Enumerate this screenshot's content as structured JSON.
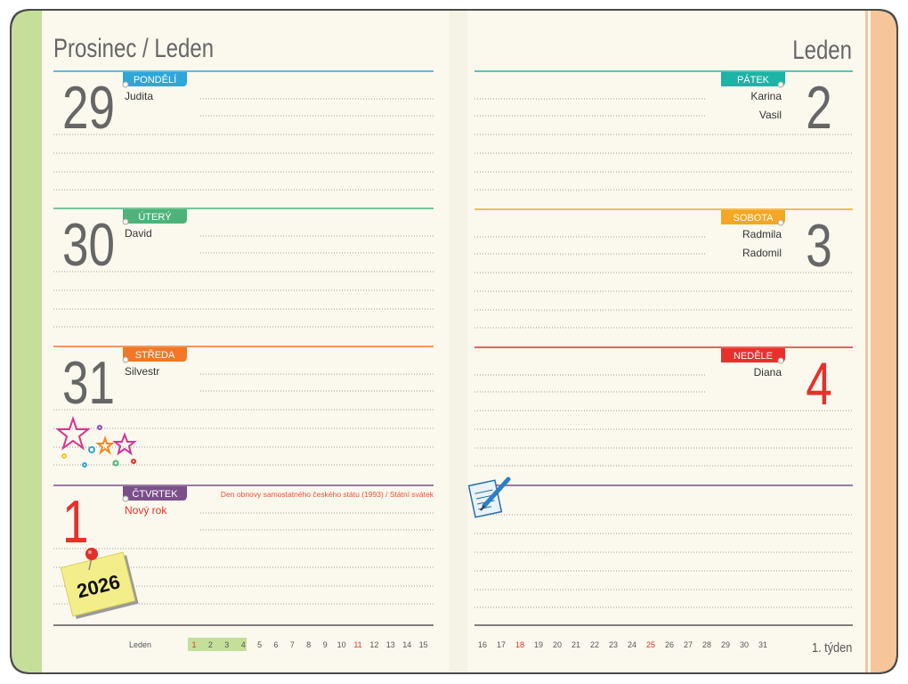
{
  "left": {
    "title": "Prosinec / Leden",
    "days": [
      {
        "number": "29",
        "weekday": "PONDĚLÍ",
        "names": [
          "Judita"
        ]
      },
      {
        "number": "30",
        "weekday": "ÚTERÝ",
        "names": [
          "David"
        ]
      },
      {
        "number": "31",
        "weekday": "STŘEDA",
        "names": [
          "Silvestr"
        ]
      },
      {
        "number": "1",
        "weekday": "ČTVRTEK",
        "names": [
          "Nový rok"
        ],
        "note": "Den obnovy samostatného českého státu (1993) / Státní svátek"
      }
    ],
    "sticker": "2026",
    "footer": {
      "month": "Leden",
      "days": [
        1,
        2,
        3,
        4,
        5,
        6,
        7,
        8,
        9,
        10,
        11,
        12,
        13,
        14,
        15
      ]
    }
  },
  "right": {
    "title": "Leden",
    "days": [
      {
        "number": "2",
        "weekday": "PÁTEK",
        "names": [
          "Karina",
          "Vasil"
        ]
      },
      {
        "number": "3",
        "weekday": "SOBOTA",
        "names": [
          "Radmila",
          "Radomil"
        ]
      },
      {
        "number": "4",
        "weekday": "NEDĚLE",
        "names": [
          "Diana"
        ]
      }
    ],
    "footer": {
      "days": [
        16,
        17,
        18,
        19,
        20,
        21,
        22,
        23,
        24,
        25,
        26,
        27,
        28,
        29,
        30,
        31
      ],
      "week": "1. týden"
    }
  }
}
